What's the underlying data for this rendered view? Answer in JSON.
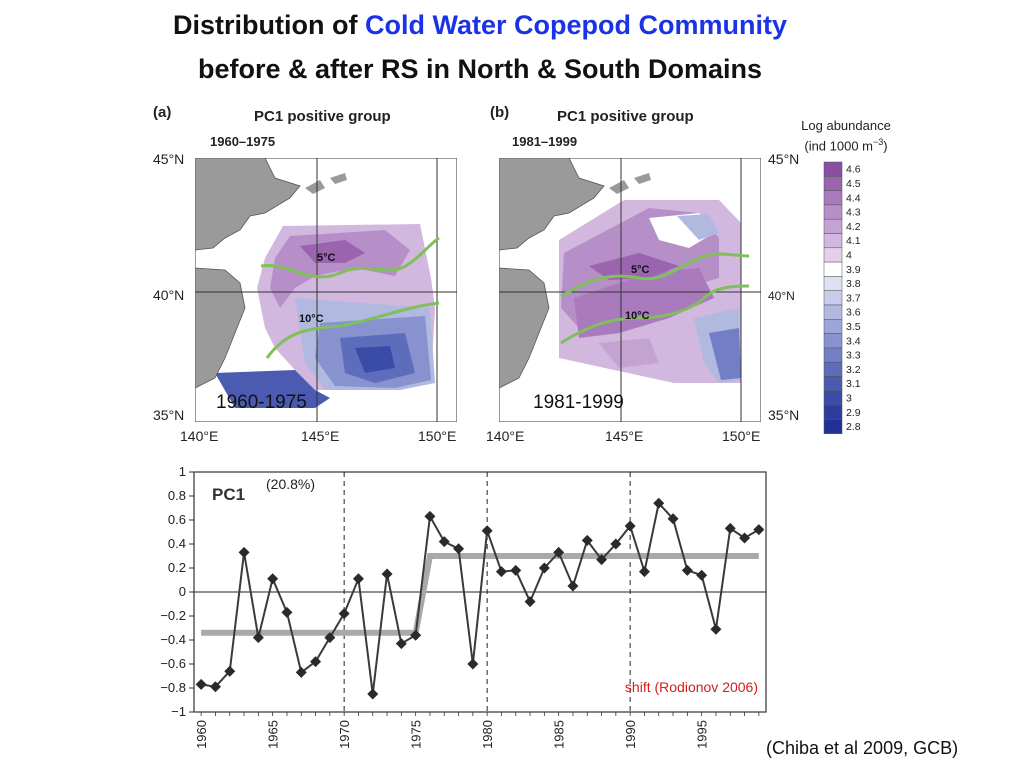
{
  "title": {
    "line1_prefix": "Distribution of ",
    "line1_highlight": "Cold Water Copepod Community",
    "line2": "before & after RS in North & South Domains"
  },
  "maps": [
    {
      "panel": "(a)",
      "group": "PC1 positive group",
      "period": "1960–1975",
      "overlay_label": "1960-1975",
      "isotherm_5": "5°C",
      "isotherm_10": "10°C"
    },
    {
      "panel": "(b)",
      "group": "PC1 positive group",
      "period": "1981–1999",
      "overlay_label": "1981-1999",
      "isotherm_5": "5°C",
      "isotherm_10": "10°C"
    }
  ],
  "map_axes": {
    "lat_ticks": [
      "45°N",
      "40°N",
      "35°N"
    ],
    "lon_ticks": [
      "140°E",
      "145°E",
      "150°E"
    ]
  },
  "legend": {
    "title_line1": "Log abundance",
    "title_line2": "(ind 1000 m",
    "title_sup": "−3",
    "title_end": ")",
    "levels": [
      "4.6",
      "4.5",
      "4.4",
      "4.3",
      "4.2",
      "4.1",
      "4",
      "3.9",
      "3.8",
      "3.7",
      "3.6",
      "3.5",
      "3.4",
      "3.3",
      "3.2",
      "3.1",
      "3",
      "2.9",
      "2.8"
    ],
    "colors": [
      "#8a4fa0",
      "#9a64ae",
      "#a97abc",
      "#b78fc8",
      "#c4a3d3",
      "#d2b8de",
      "#e2d0ea",
      "#ffffff",
      "#dde1f2",
      "#c7cdea",
      "#b1b9e1",
      "#9ca6d8",
      "#8792cf",
      "#727fc6",
      "#5e6cbc",
      "#4c5bb2",
      "#3b4ba8",
      "#2d3d9e",
      "#223195"
    ]
  },
  "chart_data": {
    "type": "line",
    "title": "PC1",
    "annotation_pct": "(20.8%)",
    "shift_label": "shift (Rodionov 2006)",
    "x": [
      1960,
      1961,
      1962,
      1963,
      1964,
      1965,
      1966,
      1967,
      1968,
      1969,
      1970,
      1971,
      1972,
      1973,
      1974,
      1975,
      1976,
      1977,
      1978,
      1979,
      1980,
      1981,
      1982,
      1983,
      1984,
      1985,
      1986,
      1987,
      1988,
      1989,
      1990,
      1991,
      1992,
      1993,
      1994,
      1995,
      1996,
      1997,
      1998,
      1999
    ],
    "series": [
      {
        "values": [
          -0.77,
          -0.79,
          -0.66,
          0.33,
          -0.38,
          0.11,
          -0.17,
          -0.67,
          -0.58,
          -0.38,
          -0.18,
          0.11,
          -0.85,
          0.15,
          -0.43,
          -0.36,
          0.63,
          0.42,
          0.36,
          -0.6,
          0.51,
          0.17,
          0.18,
          -0.08,
          0.2,
          0.33,
          0.05,
          0.43,
          0.27,
          0.4,
          0.55,
          0.17,
          0.74,
          0.61,
          0.18,
          0.14,
          -0.31,
          0.53,
          0.45,
          0.52
        ]
      }
    ],
    "regime_shift": [
      {
        "x_start": 1960,
        "x_end": 1975,
        "y": -0.34
      },
      {
        "x_start": 1976,
        "x_end": 1999,
        "y": 0.3
      }
    ],
    "ylim": [
      -1,
      1
    ],
    "yticks": [
      "1",
      "0.8",
      "0.6",
      "0.4",
      "0.2",
      "0",
      "−0.2",
      "−0.4",
      "−0.6",
      "−0.8",
      "−1"
    ],
    "xlim": [
      1960,
      1999
    ],
    "xticks": [
      "1960",
      "1965",
      "1970",
      "1975",
      "1980",
      "1985",
      "1990",
      "1995"
    ],
    "vlines": [
      1970,
      1980,
      1990
    ]
  },
  "citation": "(Chiba et al 2009, GCB)"
}
